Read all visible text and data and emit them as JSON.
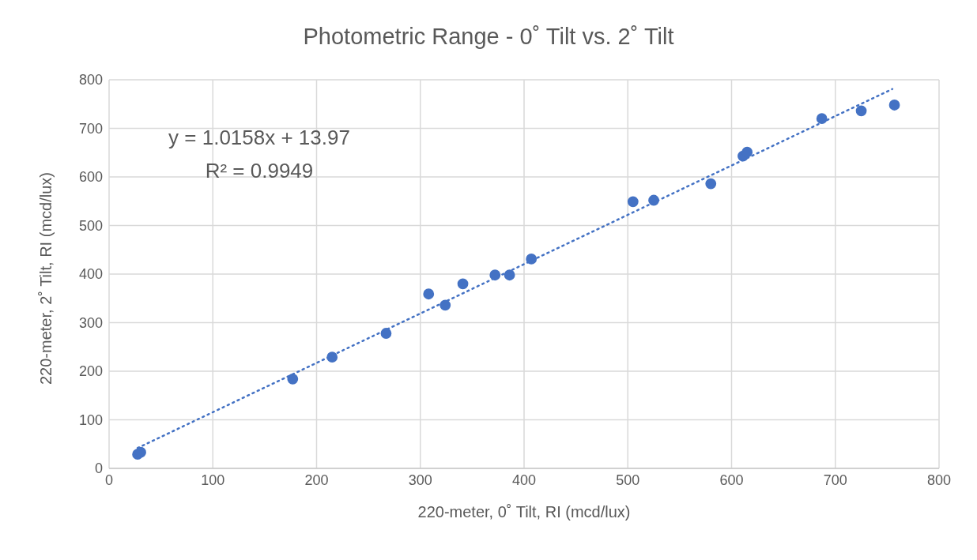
{
  "chart_data": {
    "type": "scatter",
    "title": "Photometric Range - 0˚ Tilt vs. 2˚ Tilt",
    "xlabel": "220-meter, 0˚ Tilt, RI (mcd/lux)",
    "ylabel": "220-meter, 2˚ Tilt, RI (mcd/lux)",
    "annotations": [
      "y = 1.0158x + 13.97",
      "R² = 0.9949"
    ],
    "xlim": [
      0,
      800
    ],
    "xticks": [
      0,
      100,
      200,
      300,
      400,
      500,
      600,
      700,
      800
    ],
    "ylim": [
      0,
      800
    ],
    "yticks": [
      0,
      100,
      200,
      300,
      400,
      500,
      600,
      700,
      800
    ],
    "grid": true,
    "marker": "circle",
    "series": [
      {
        "color": "#4472c4",
        "x": [
          27.5,
          30.5,
          177,
          215,
          267,
          308,
          324,
          341,
          372,
          386,
          407,
          505,
          525,
          580,
          611,
          615,
          687,
          725,
          757
        ],
        "values": [
          29,
          33,
          184,
          229,
          278,
          359,
          336,
          380,
          398,
          398,
          431,
          549,
          552,
          586,
          643,
          651,
          720,
          736,
          748
        ]
      },
      {
        "type": "line",
        "color": "#4472c4",
        "line_style": "dotted",
        "marker": "none",
        "x": [
          27.5,
          755
        ],
        "values": [
          42,
          781
        ]
      }
    ]
  }
}
